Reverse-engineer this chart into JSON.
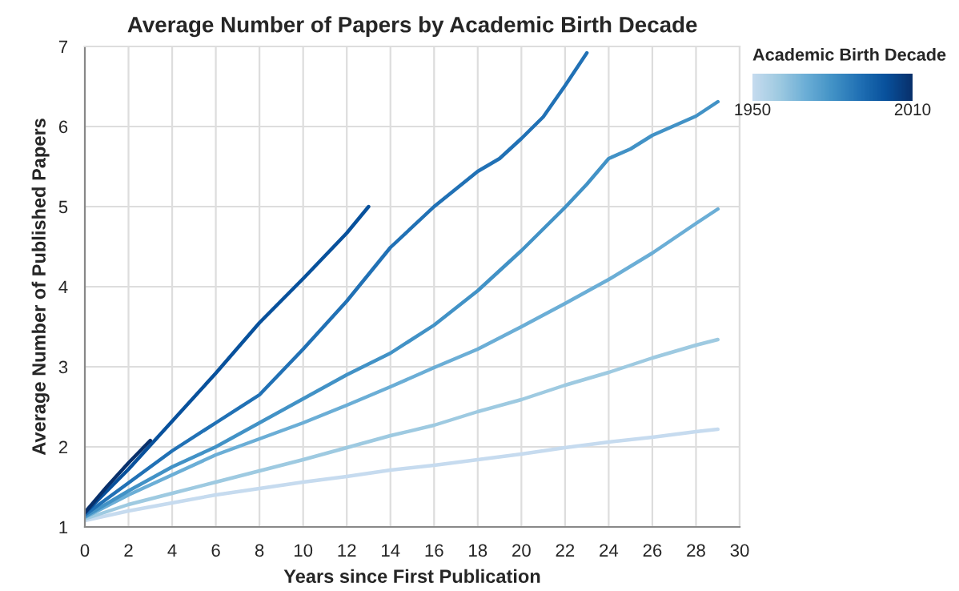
{
  "chart_data": {
    "type": "line",
    "title": "Average Number of Papers by Academic Birth Decade",
    "xlabel": "Years since First Publication",
    "ylabel": "Average Number of Published Papers",
    "clabel": "Academic Birth Decade",
    "clim": [
      1950,
      2010
    ],
    "cticks": [
      1950,
      2010
    ],
    "xlim": [
      0,
      30
    ],
    "xticks": [
      0,
      2,
      4,
      6,
      8,
      10,
      12,
      14,
      16,
      18,
      20,
      22,
      24,
      26,
      28,
      30
    ],
    "ylim": [
      1,
      7
    ],
    "yticks": [
      1,
      2,
      3,
      4,
      5,
      6,
      7
    ],
    "grid": true,
    "series": [
      {
        "color": "#c6dbef",
        "x": [
          0,
          2,
          4,
          6,
          8,
          10,
          12,
          14,
          16,
          18,
          20,
          22,
          24,
          26,
          28,
          29
        ],
        "values": [
          1.08,
          1.2,
          1.3,
          1.4,
          1.48,
          1.56,
          1.63,
          1.71,
          1.77,
          1.84,
          1.91,
          1.99,
          2.06,
          2.12,
          2.19,
          2.22
        ]
      },
      {
        "color": "#9ecae1",
        "x": [
          0,
          2,
          4,
          6,
          8,
          10,
          12,
          14,
          16,
          18,
          20,
          22,
          24,
          26,
          28,
          29
        ],
        "values": [
          1.1,
          1.28,
          1.42,
          1.56,
          1.7,
          1.84,
          1.99,
          2.14,
          2.27,
          2.44,
          2.59,
          2.77,
          2.93,
          3.11,
          3.27,
          3.34
        ]
      },
      {
        "color": "#6baed6",
        "x": [
          0,
          2,
          4,
          6,
          8,
          10,
          12,
          14,
          16,
          18,
          20,
          22,
          24,
          26,
          28,
          29
        ],
        "values": [
          1.12,
          1.4,
          1.65,
          1.9,
          2.1,
          2.3,
          2.52,
          2.75,
          2.99,
          3.22,
          3.5,
          3.79,
          4.09,
          4.42,
          4.79,
          4.97
        ]
      },
      {
        "color": "#4292c6",
        "x": [
          0,
          2,
          4,
          6,
          8,
          10,
          12,
          14,
          16,
          18,
          20,
          22,
          23,
          24,
          25,
          26,
          28,
          29
        ],
        "values": [
          1.13,
          1.45,
          1.75,
          2.0,
          2.3,
          2.6,
          2.9,
          3.17,
          3.52,
          3.95,
          4.45,
          4.99,
          5.28,
          5.6,
          5.72,
          5.89,
          6.13,
          6.31
        ]
      },
      {
        "color": "#2171b5",
        "x": [
          0,
          2,
          4,
          6,
          8,
          10,
          12,
          14,
          16,
          18,
          19,
          20,
          21,
          22,
          23
        ],
        "values": [
          1.15,
          1.55,
          1.95,
          2.3,
          2.65,
          3.22,
          3.82,
          4.49,
          5.0,
          5.44,
          5.6,
          5.85,
          6.12,
          6.51,
          6.92
        ]
      },
      {
        "color": "#08519c",
        "x": [
          0,
          2,
          4,
          6,
          8,
          10,
          12,
          13
        ],
        "values": [
          1.17,
          1.72,
          2.32,
          2.92,
          3.55,
          4.1,
          4.67,
          5.0
        ]
      },
      {
        "color": "#08306b",
        "x": [
          0,
          1,
          2,
          3
        ],
        "values": [
          1.18,
          1.5,
          1.8,
          2.08
        ]
      }
    ]
  }
}
